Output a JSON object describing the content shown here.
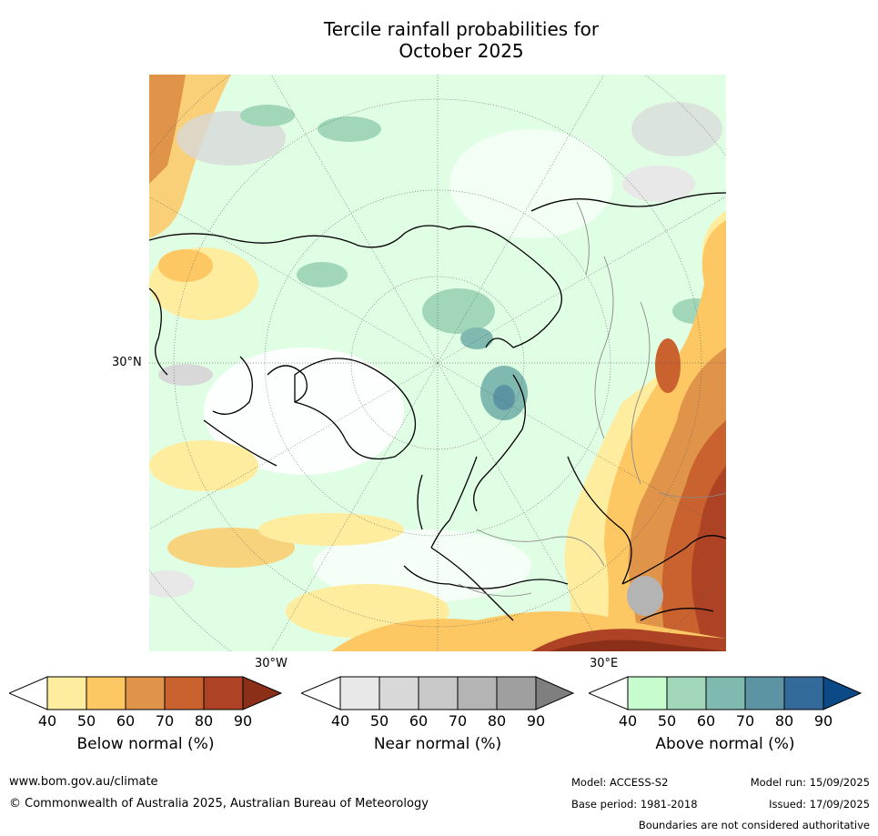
{
  "title_line1": "Tercile rainfall probabilities for",
  "title_line2": "October 2025",
  "map_labels": {
    "lat_30n": "30°N",
    "lon_30w": "30°W",
    "lon_30e": "30°E"
  },
  "colorbars": [
    {
      "label": "Below normal (%)",
      "ticks": [
        "40",
        "50",
        "60",
        "70",
        "80",
        "90"
      ],
      "colors": [
        "#ffffff",
        "#feec9f",
        "#fdc864",
        "#e0944a",
        "#c9622f",
        "#ad4324",
        "#8b2f18"
      ]
    },
    {
      "label": "Near normal (%)",
      "ticks": [
        "40",
        "50",
        "60",
        "70",
        "80",
        "90"
      ],
      "colors": [
        "#ffffff",
        "#e8e8e8",
        "#d8d8d8",
        "#c8c8c8",
        "#b4b4b4",
        "#9f9f9f",
        "#7f7f7f"
      ]
    },
    {
      "label": "Above normal (%)",
      "ticks": [
        "40",
        "50",
        "60",
        "70",
        "80",
        "90"
      ],
      "colors": [
        "#ffffff",
        "#c7fdce",
        "#a1d7b8",
        "#80b9b0",
        "#5c94a4",
        "#336a9a",
        "#0b4a87"
      ]
    }
  ],
  "footer": {
    "url": "www.bom.gov.au/climate",
    "copyright": "© Commonwealth of Australia 2025, Australian Bureau of Meteorology",
    "model": "Model: ACCESS-S2",
    "model_run": "Model run: 15/09/2025",
    "base_period": "Base period: 1981-2018",
    "issued": "Issued: 17/09/2025",
    "disclaimer": "Boundaries are not considered authoritative"
  }
}
